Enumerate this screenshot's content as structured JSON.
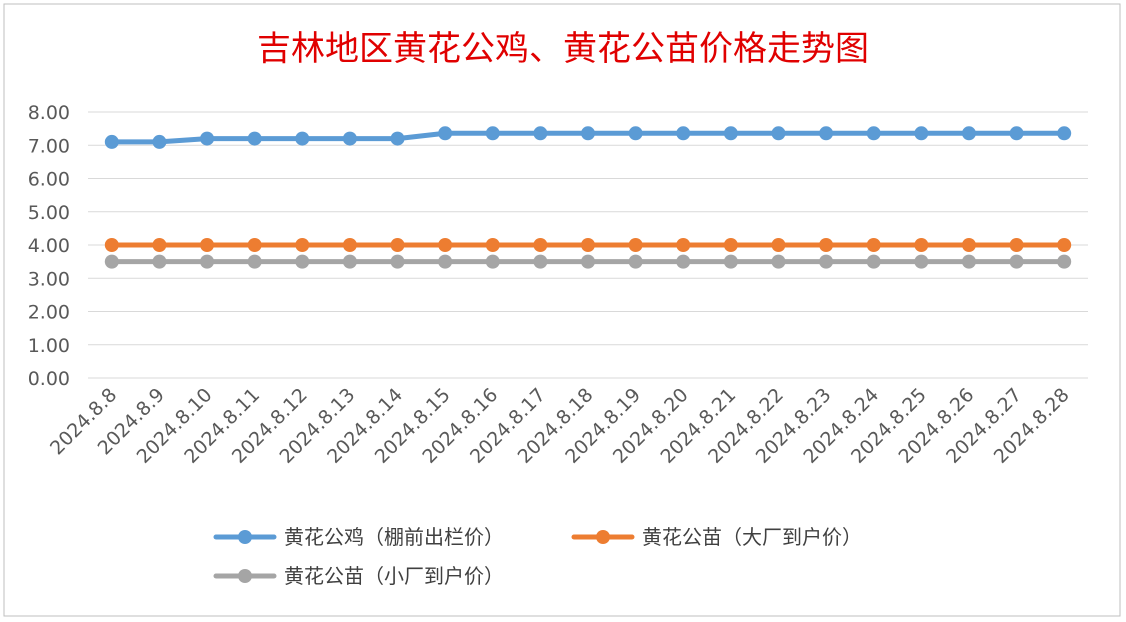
{
  "chart_data": {
    "type": "line",
    "title": "吉林地区黄花公鸡、黄花公苗价格走势图",
    "categories": [
      "2024.8.8",
      "2024.8.9",
      "2024.8.10",
      "2024.8.11",
      "2024.8.12",
      "2024.8.13",
      "2024.8.14",
      "2024.8.15",
      "2024.8.16",
      "2024.8.17",
      "2024.8.18",
      "2024.8.19",
      "2024.8.20",
      "2024.8.21",
      "2024.8.22",
      "2024.8.23",
      "2024.8.24",
      "2024.8.25",
      "2024.8.26",
      "2024.8.27",
      "2024.8.28"
    ],
    "y_ticks": [
      "0.00",
      "1.00",
      "2.00",
      "3.00",
      "4.00",
      "5.00",
      "6.00",
      "7.00",
      "8.00"
    ],
    "ylim": [
      0,
      8
    ],
    "grid": true,
    "legend_position": "bottom",
    "series": [
      {
        "name": "黄花公鸡（棚前出栏价）",
        "color": "#5b9bd5",
        "values": [
          7.1,
          7.1,
          7.2,
          7.2,
          7.2,
          7.2,
          7.2,
          7.36,
          7.36,
          7.36,
          7.36,
          7.36,
          7.36,
          7.36,
          7.36,
          7.36,
          7.36,
          7.36,
          7.36,
          7.36,
          7.36
        ]
      },
      {
        "name": "黄花公苗（大厂到户价）",
        "color": "#ed7d31",
        "values": [
          4.0,
          4.0,
          4.0,
          4.0,
          4.0,
          4.0,
          4.0,
          4.0,
          4.0,
          4.0,
          4.0,
          4.0,
          4.0,
          4.0,
          4.0,
          4.0,
          4.0,
          4.0,
          4.0,
          4.0,
          4.0
        ]
      },
      {
        "name": "黄花公苗（小厂到户价）",
        "color": "#a5a5a5",
        "values": [
          3.5,
          3.5,
          3.5,
          3.5,
          3.5,
          3.5,
          3.5,
          3.5,
          3.5,
          3.5,
          3.5,
          3.5,
          3.5,
          3.5,
          3.5,
          3.5,
          3.5,
          3.5,
          3.5,
          3.5,
          3.5
        ]
      }
    ]
  },
  "colors": {
    "title": "#e00000",
    "gridline": "#d9d9d9",
    "axis_text": "#595959",
    "border": "#bfbfbf"
  }
}
